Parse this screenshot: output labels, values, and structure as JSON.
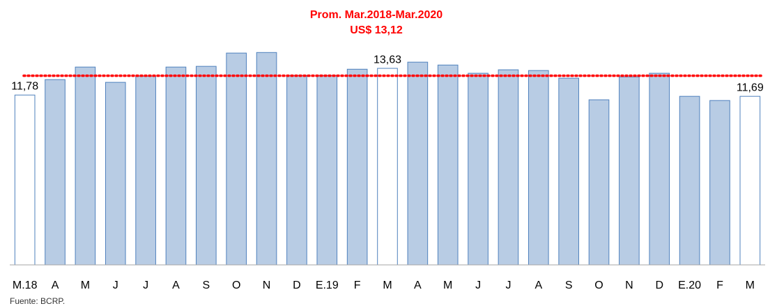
{
  "chart_data": {
    "type": "bar",
    "title": "Prom. Mar.2018-Mar.2020",
    "average": {
      "value": 13.12,
      "label": "US$ 13,12",
      "color": "#ff0000"
    },
    "categories": [
      "M.18",
      "A",
      "M",
      "J",
      "J",
      "A",
      "S",
      "O",
      "N",
      "D",
      "E.19",
      "F",
      "M",
      "A",
      "M",
      "J",
      "J",
      "A",
      "S",
      "O",
      "N",
      "D",
      "E.20",
      "F",
      "M"
    ],
    "values": [
      11.78,
      12.85,
      13.72,
      12.66,
      13.09,
      13.72,
      13.77,
      14.69,
      14.73,
      13.14,
      13.14,
      13.57,
      13.63,
      14.06,
      13.86,
      13.29,
      13.53,
      13.48,
      12.95,
      11.45,
      13.04,
      13.29,
      11.69,
      11.4,
      11.69
    ],
    "value_labels": [
      "11,78",
      null,
      null,
      null,
      null,
      null,
      null,
      null,
      null,
      null,
      null,
      null,
      "13,63",
      null,
      null,
      null,
      null,
      null,
      null,
      null,
      null,
      null,
      null,
      null,
      "11,69"
    ],
    "colors": [
      "#ffffff",
      "#b8cce4",
      "#b8cce4",
      "#b8cce4",
      "#b8cce4",
      "#b8cce4",
      "#b8cce4",
      "#b8cce4",
      "#b8cce4",
      "#b8cce4",
      "#b8cce4",
      "#b8cce4",
      "#ffffff",
      "#b8cce4",
      "#b8cce4",
      "#b8cce4",
      "#b8cce4",
      "#b8cce4",
      "#b8cce4",
      "#b8cce4",
      "#b8cce4",
      "#b8cce4",
      "#b8cce4",
      "#b8cce4",
      "#ffffff"
    ],
    "border_color": "#4f81bd",
    "ylim": [
      0,
      17.5
    ],
    "source": "Fuente: BCRP."
  }
}
